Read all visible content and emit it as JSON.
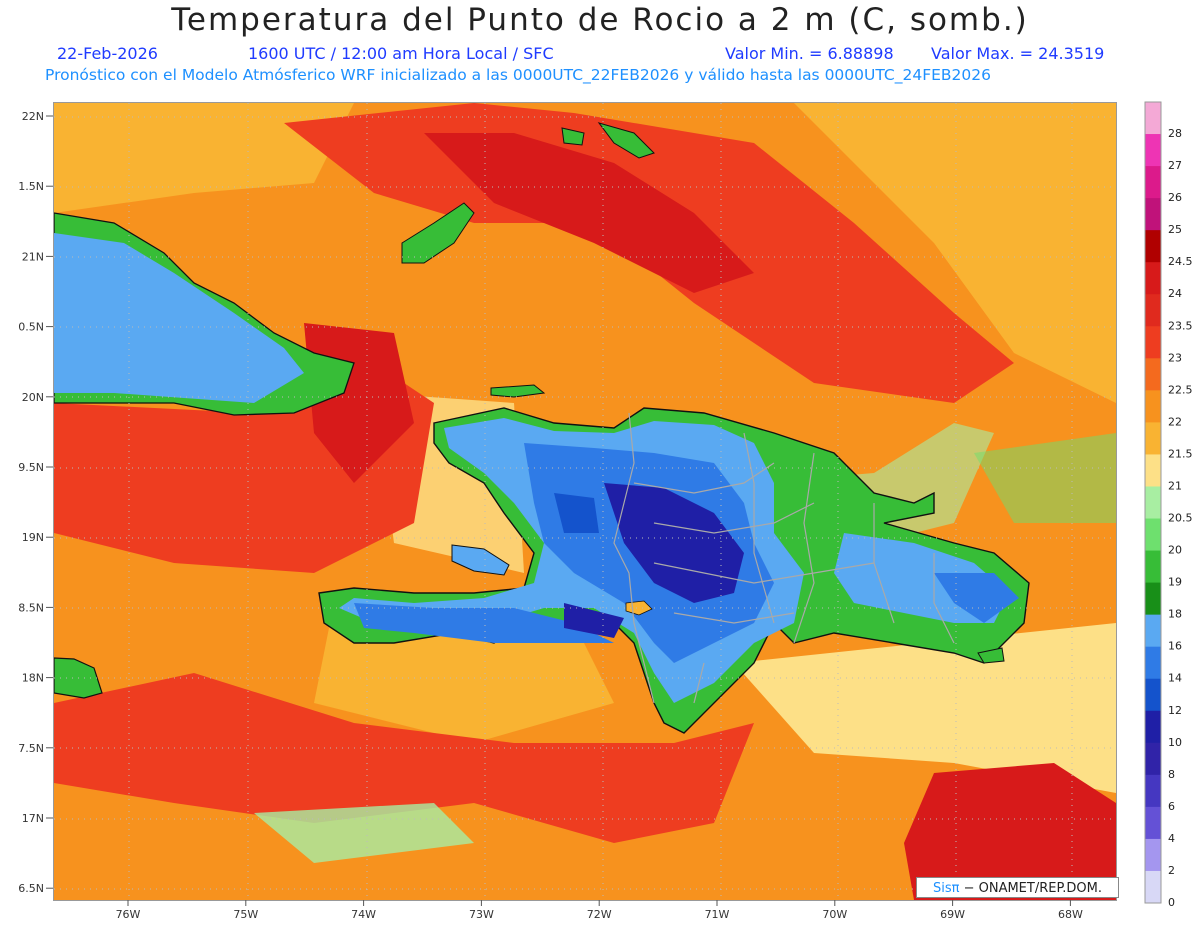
{
  "title": "Temperatura del Punto de Rocio a 2 m (C, somb.)",
  "subtitle": {
    "date": "22-Feb-2026",
    "time": "1600 UTC / 12:00 am Hora Local / SFC",
    "min": "Valor Min. = 6.88898",
    "max": "Valor Max. = 24.3519"
  },
  "model_line": "Pronóstico con el Modelo Atmósferico WRF inicializado a las 0000UTC_22FEB2026 y válido hasta las  0000UTC_24FEB2026",
  "lat_ticks": [
    "22N",
    "1.5N",
    "21N",
    "0.5N",
    "20N",
    "9.5N",
    "19N",
    "8.5N",
    "18N",
    "7.5N",
    "17N",
    "6.5N"
  ],
  "lon_ticks": [
    "76W",
    "75W",
    "74W",
    "73W",
    "72W",
    "71W",
    "70W",
    "69W",
    "68W"
  ],
  "colorbar": {
    "labels": [
      "28",
      "27",
      "26",
      "25",
      "24.5",
      "24",
      "23.5",
      "23",
      "22.5",
      "22",
      "21.5",
      "21",
      "20.5",
      "20",
      "19",
      "18",
      "16",
      "14",
      "12",
      "10",
      "8",
      "6",
      "4",
      "2",
      "0"
    ],
    "colors": [
      "#f4a9d6",
      "#ee34b4",
      "#dc1a8b",
      "#c0127a",
      "#b00000",
      "#d71a1a",
      "#e02a1e",
      "#ee3d20",
      "#f46a1e",
      "#f7921e",
      "#f9b332",
      "#fde087",
      "#a8eea2",
      "#6ee06e",
      "#37bd37",
      "#188f18",
      "#5aa9f2",
      "#2f7be6",
      "#1453cc",
      "#1f1fa6",
      "#3023a8",
      "#4537c1",
      "#6451d6",
      "#a496ef",
      "#d8d8f6"
    ]
  },
  "credit": {
    "sis": "Sisπ",
    "org": " − ONAMET/REP.DOM."
  }
}
